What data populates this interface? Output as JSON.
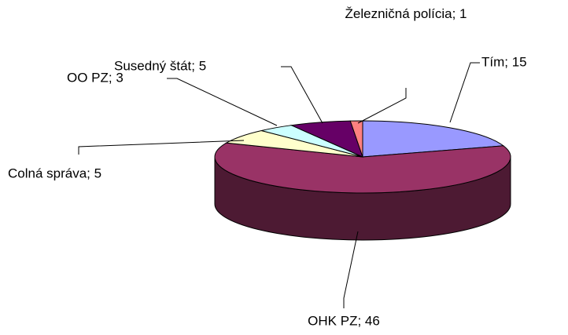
{
  "chart_data": {
    "type": "pie",
    "values": [
      15,
      46,
      5,
      3,
      5,
      1
    ],
    "value_labels": [
      "Tím; 15",
      "OHK PZ; 46",
      "Colná správa; 5",
      "OO PZ; 3",
      "Susedný štát; 5",
      "Železničná polícia; 1"
    ],
    "colors": [
      "#9999ff",
      "#993366",
      "#ffffcc",
      "#ccffff",
      "#660066",
      "#ff8080"
    ],
    "three_d": true
  }
}
